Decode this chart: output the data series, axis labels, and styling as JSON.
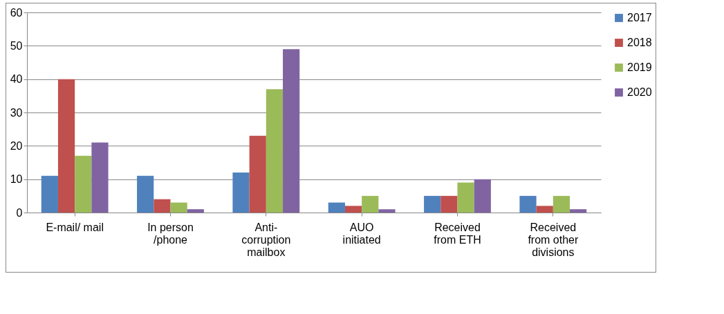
{
  "chart_data": {
    "type": "bar",
    "categories": [
      "E-mail/ mail",
      "In person /phone",
      "Anti-corruption mailbox",
      "AUO initiated",
      "Received from ETH",
      "Received from other divisions"
    ],
    "series": [
      {
        "name": "2017",
        "color": "#4f81bd",
        "values": [
          11,
          11,
          12,
          3,
          5,
          5
        ]
      },
      {
        "name": "2018",
        "color": "#c0504d",
        "values": [
          40,
          4,
          23,
          2,
          5,
          2
        ]
      },
      {
        "name": "2019",
        "color": "#9bbb59",
        "values": [
          17,
          3,
          37,
          5,
          9,
          5
        ]
      },
      {
        "name": "2020",
        "color": "#8064a2",
        "values": [
          21,
          1,
          49,
          1,
          10,
          1
        ]
      }
    ],
    "ylim": [
      0,
      60
    ],
    "yticks": [
      0,
      10,
      20,
      30,
      40,
      50,
      60
    ],
    "grid": "y",
    "legend": "right"
  }
}
